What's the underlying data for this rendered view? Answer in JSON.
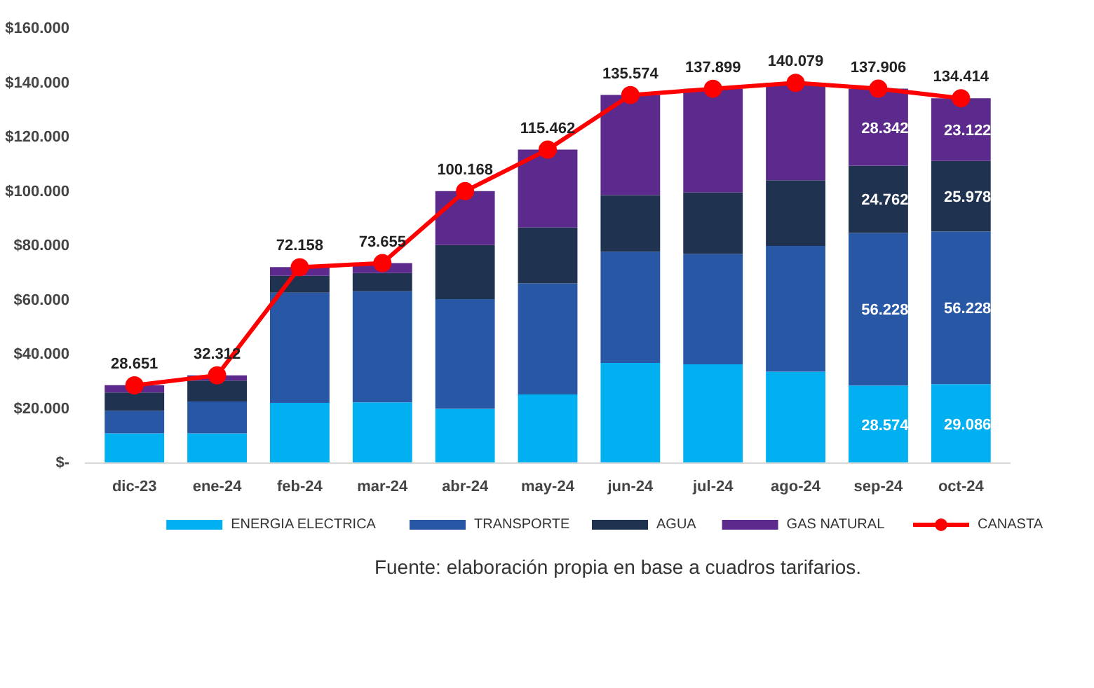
{
  "chart_data": {
    "type": "bar",
    "stacked": true,
    "categories": [
      "dic-23",
      "ene-24",
      "feb-24",
      "mar-24",
      "abr-24",
      "may-24",
      "jun-24",
      "jul-24",
      "ago-24",
      "sep-24",
      "oct-24"
    ],
    "series": [
      {
        "name": "ENERGIA ELECTRICA",
        "color": "#00b0f0",
        "values": [
          11000,
          11000,
          22200,
          22400,
          20000,
          25300,
          36900,
          36400,
          33700,
          28574,
          29086
        ],
        "value_labels": [
          null,
          null,
          null,
          null,
          null,
          null,
          null,
          null,
          null,
          "28.574",
          "29.086"
        ]
      },
      {
        "name": "TRANSPORTE",
        "color": "#2757a5",
        "values": [
          8300,
          11700,
          40600,
          40900,
          40400,
          40900,
          41000,
          40700,
          46300,
          56228,
          56228
        ],
        "value_labels": [
          null,
          null,
          null,
          null,
          null,
          null,
          null,
          null,
          null,
          "56.228",
          "56.228"
        ]
      },
      {
        "name": "AGUA",
        "color": "#1f3250",
        "values": [
          6700,
          7700,
          6200,
          6700,
          19900,
          20600,
          20800,
          22600,
          24200,
          24762,
          25978
        ],
        "value_labels": [
          null,
          null,
          null,
          null,
          null,
          null,
          null,
          null,
          null,
          "24.762",
          "25.978"
        ]
      },
      {
        "name": "GAS NATURAL",
        "color": "#5b2a8c",
        "values": [
          2700,
          1900,
          3200,
          3700,
          19900,
          28700,
          36900,
          38200,
          35900,
          28342,
          23122
        ],
        "value_labels": [
          null,
          null,
          null,
          null,
          null,
          null,
          null,
          null,
          null,
          "28.342",
          "23.122"
        ]
      },
      {
        "name": "CANASTA",
        "type": "line",
        "color": "#ff0000",
        "marker": "circle",
        "values": [
          28651,
          32312,
          72158,
          73655,
          100168,
          115462,
          135574,
          137899,
          140079,
          137906,
          134414
        ],
        "value_labels": [
          "28.651",
          "32.312",
          "72.158",
          "73.655",
          "100.168",
          "115.462",
          "135.574",
          "137.899",
          "140.079",
          "137.906",
          "134.414"
        ]
      }
    ],
    "ylim": [
      0,
      160000
    ],
    "yticks": [
      {
        "value": 0,
        "label": "$-"
      },
      {
        "value": 20000,
        "label": "$20.000"
      },
      {
        "value": 40000,
        "label": "$40.000"
      },
      {
        "value": 60000,
        "label": "$60.000"
      },
      {
        "value": 80000,
        "label": "$80.000"
      },
      {
        "value": 100000,
        "label": "$100.000"
      },
      {
        "value": 120000,
        "label": "$120.000"
      },
      {
        "value": 140000,
        "label": "$140.000"
      },
      {
        "value": 160000,
        "label": "$160.000"
      }
    ],
    "grid": false,
    "legend": "bottom",
    "annotations": [
      "Fuente: elaboración propia en base a cuadros tarifarios."
    ]
  }
}
